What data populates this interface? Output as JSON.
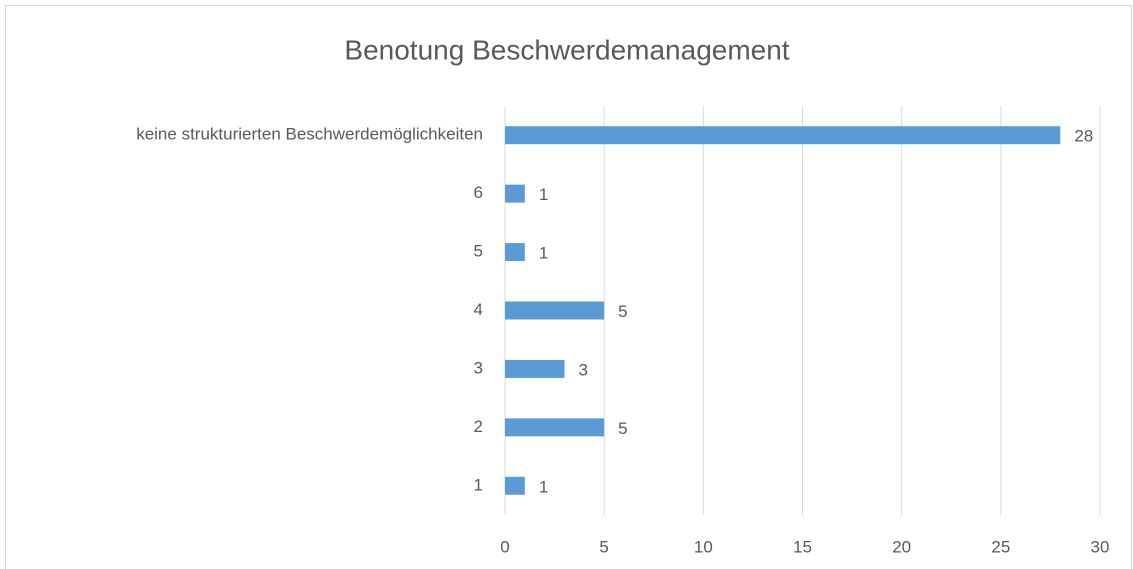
{
  "chart_data": {
    "type": "bar",
    "orientation": "horizontal",
    "title": "Benotung Beschwerdemanagement",
    "categories": [
      "1",
      "2",
      "3",
      "4",
      "5",
      "6",
      "keine strukturierten Beschwerdemöglichkeiten"
    ],
    "values": [
      1,
      5,
      3,
      5,
      1,
      1,
      28
    ],
    "color": "#5b9bd5",
    "xlim": [
      0,
      30
    ],
    "xticks": [
      0,
      5,
      10,
      15,
      20,
      25,
      30
    ],
    "grid": true
  }
}
